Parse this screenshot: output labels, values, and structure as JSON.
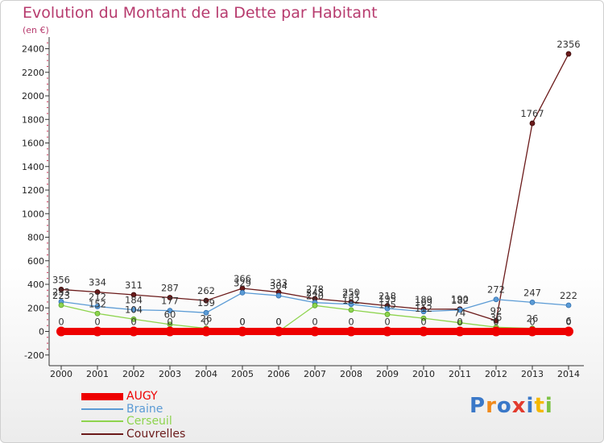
{
  "header": {
    "title": "Evolution du Montant de la Dette par Habitant",
    "unit": "(en €)"
  },
  "colors": {
    "title": "#b73b6e",
    "axis": "#333333",
    "grid_dots": "#cc3355"
  },
  "chart_data": {
    "type": "line",
    "title": "Evolution du Montant de la Dette par Habitant",
    "xlabel": "",
    "ylabel": "(en €)",
    "x": [
      2000,
      2001,
      2002,
      2003,
      2004,
      2005,
      2006,
      2007,
      2008,
      2009,
      2010,
      2011,
      2012,
      2013,
      2014
    ],
    "ylim": [
      -200,
      2500
    ],
    "yticks": [
      -200,
      0,
      200,
      400,
      600,
      800,
      1000,
      1200,
      1400,
      1600,
      1800,
      2000,
      2200,
      2400
    ],
    "grid": false,
    "legend_position": "bottom-left",
    "series": [
      {
        "name": "AUGY",
        "color": "#ee0000",
        "values": [
          0,
          0,
          0,
          0,
          0,
          0,
          0,
          0,
          0,
          0,
          0,
          0,
          0,
          0,
          0
        ],
        "labels": [
          "0",
          "0",
          "0",
          "0",
          "0",
          "0",
          "0",
          "0",
          "0",
          "0",
          "0",
          "0",
          "0",
          "0",
          "0"
        ]
      },
      {
        "name": "Braine",
        "color": "#5b9bd5",
        "values": [
          253,
          212,
          184,
          177,
          159,
          329,
          304,
          245,
          231,
          195,
          169,
          182,
          272,
          247,
          222
        ],
        "labels": [
          "253",
          "212",
          "184",
          "177",
          "159",
          "329",
          "304",
          "245",
          "231",
          "195",
          "169",
          "182",
          "272",
          "247",
          "222"
        ]
      },
      {
        "name": "Cerseuil",
        "color": "#8ed44e",
        "values": [
          223,
          152,
          104,
          60,
          26,
          0,
          0,
          220,
          182,
          145,
          112,
          74,
          36,
          26,
          6
        ],
        "labels": [
          "223",
          "152",
          "104",
          "60",
          "26",
          "0",
          "0",
          "220",
          "182",
          "145",
          "112",
          "74",
          "36",
          "26",
          "6"
        ]
      },
      {
        "name": "Couvrelles",
        "color": "#6b1a1a",
        "values": [
          356,
          334,
          311,
          287,
          262,
          366,
          333,
          278,
          250,
          218,
          189,
          190,
          92,
          1767,
          2356
        ],
        "labels": [
          "356",
          "334",
          "311",
          "287",
          "262",
          "366",
          "333",
          "278",
          "250",
          "218",
          "189",
          "190",
          "92",
          "1767",
          "2356"
        ]
      }
    ]
  },
  "logo": {
    "letters": [
      {
        "ch": "P",
        "color": "#3a78c8"
      },
      {
        "ch": "r",
        "color": "#f08a1c"
      },
      {
        "ch": "o",
        "color": "#3a78c8"
      },
      {
        "ch": "x",
        "color": "#e23b2e"
      },
      {
        "ch": "i",
        "color": "#3a78c8"
      },
      {
        "ch": "t",
        "color": "#f5b800"
      },
      {
        "ch": "i",
        "color": "#7cc243"
      }
    ]
  }
}
